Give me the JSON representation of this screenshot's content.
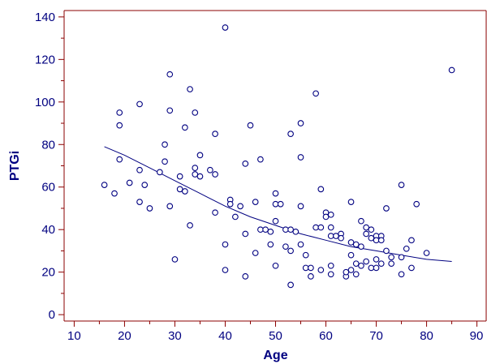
{
  "chart_data": {
    "type": "scatter",
    "xlabel": "Age",
    "ylabel": "PTGi",
    "xlim": [
      8,
      92
    ],
    "ylim": [
      -3,
      143
    ],
    "xticks": [
      10,
      20,
      30,
      40,
      50,
      60,
      70,
      80,
      90
    ],
    "yticks": [
      0,
      20,
      40,
      60,
      80,
      100,
      120,
      140
    ],
    "grid": false,
    "colors": {
      "axis": "#8b0000",
      "text": "#000080",
      "points": "#000080",
      "fit": "#000080"
    },
    "series": [
      {
        "points": [
          [
            16,
            61
          ],
          [
            18,
            57
          ],
          [
            19,
            95
          ],
          [
            19,
            89
          ],
          [
            19,
            73
          ],
          [
            21,
            62
          ],
          [
            23,
            99
          ],
          [
            23,
            68
          ],
          [
            23,
            53
          ],
          [
            24,
            61
          ],
          [
            25,
            50
          ],
          [
            27,
            67
          ],
          [
            28,
            80
          ],
          [
            28,
            72
          ],
          [
            29,
            113
          ],
          [
            29,
            96
          ],
          [
            29,
            51
          ],
          [
            30,
            26
          ],
          [
            31,
            65
          ],
          [
            31,
            59
          ],
          [
            32,
            88
          ],
          [
            32,
            58
          ],
          [
            33,
            106
          ],
          [
            33,
            42
          ],
          [
            34,
            95
          ],
          [
            34,
            69
          ],
          [
            34,
            66
          ],
          [
            35,
            75
          ],
          [
            35,
            65
          ],
          [
            37,
            68
          ],
          [
            38,
            85
          ],
          [
            38,
            66
          ],
          [
            38,
            48
          ],
          [
            40,
            135
          ],
          [
            40,
            33
          ],
          [
            40,
            21
          ],
          [
            41,
            54
          ],
          [
            41,
            52
          ],
          [
            42,
            46
          ],
          [
            43,
            51
          ],
          [
            44,
            71
          ],
          [
            44,
            38
          ],
          [
            44,
            18
          ],
          [
            45,
            89
          ],
          [
            46,
            53
          ],
          [
            47,
            73
          ],
          [
            46,
            29
          ],
          [
            47,
            40
          ],
          [
            48,
            40
          ],
          [
            49,
            33
          ],
          [
            49,
            39
          ],
          [
            50,
            57
          ],
          [
            50,
            52
          ],
          [
            50,
            44
          ],
          [
            50,
            23
          ],
          [
            51,
            52
          ],
          [
            52,
            40
          ],
          [
            52,
            32
          ],
          [
            53,
            85
          ],
          [
            53,
            40
          ],
          [
            53,
            30
          ],
          [
            53,
            14
          ],
          [
            54,
            39
          ],
          [
            55,
            90
          ],
          [
            55,
            74
          ],
          [
            55,
            51
          ],
          [
            55,
            33
          ],
          [
            56,
            28
          ],
          [
            56,
            22
          ],
          [
            57,
            22
          ],
          [
            57,
            18
          ],
          [
            58,
            104
          ],
          [
            58,
            41
          ],
          [
            59,
            59
          ],
          [
            59,
            41
          ],
          [
            59,
            21
          ],
          [
            60,
            48
          ],
          [
            60,
            46
          ],
          [
            61,
            47
          ],
          [
            61,
            41
          ],
          [
            61,
            37
          ],
          [
            61,
            23
          ],
          [
            61,
            19
          ],
          [
            62,
            37
          ],
          [
            63,
            38
          ],
          [
            63,
            36
          ],
          [
            64,
            18
          ],
          [
            64,
            20
          ],
          [
            65,
            53
          ],
          [
            65,
            34
          ],
          [
            65,
            28
          ],
          [
            65,
            21
          ],
          [
            66,
            33
          ],
          [
            66,
            24
          ],
          [
            66,
            19
          ],
          [
            67,
            44
          ],
          [
            67,
            32
          ],
          [
            67,
            23
          ],
          [
            68,
            41
          ],
          [
            68,
            38
          ],
          [
            68,
            25
          ],
          [
            69,
            40
          ],
          [
            69,
            36
          ],
          [
            69,
            22
          ],
          [
            70,
            37
          ],
          [
            70,
            35
          ],
          [
            70,
            26
          ],
          [
            70,
            22
          ],
          [
            71,
            37
          ],
          [
            71,
            35
          ],
          [
            71,
            24
          ],
          [
            72,
            50
          ],
          [
            72,
            30
          ],
          [
            73,
            27
          ],
          [
            73,
            24
          ],
          [
            75,
            61
          ],
          [
            75,
            27
          ],
          [
            75,
            19
          ],
          [
            76,
            31
          ],
          [
            77,
            35
          ],
          [
            77,
            22
          ],
          [
            78,
            52
          ],
          [
            80,
            29
          ],
          [
            85,
            115
          ]
        ]
      }
    ],
    "fit_line": {
      "x": [
        16,
        20,
        25,
        30,
        35,
        40,
        45,
        50,
        55,
        60,
        65,
        70,
        75,
        80,
        85
      ],
      "y": [
        79,
        75,
        69,
        63,
        57,
        51,
        46,
        42,
        38,
        35,
        32,
        30,
        28,
        26,
        25
      ]
    }
  }
}
